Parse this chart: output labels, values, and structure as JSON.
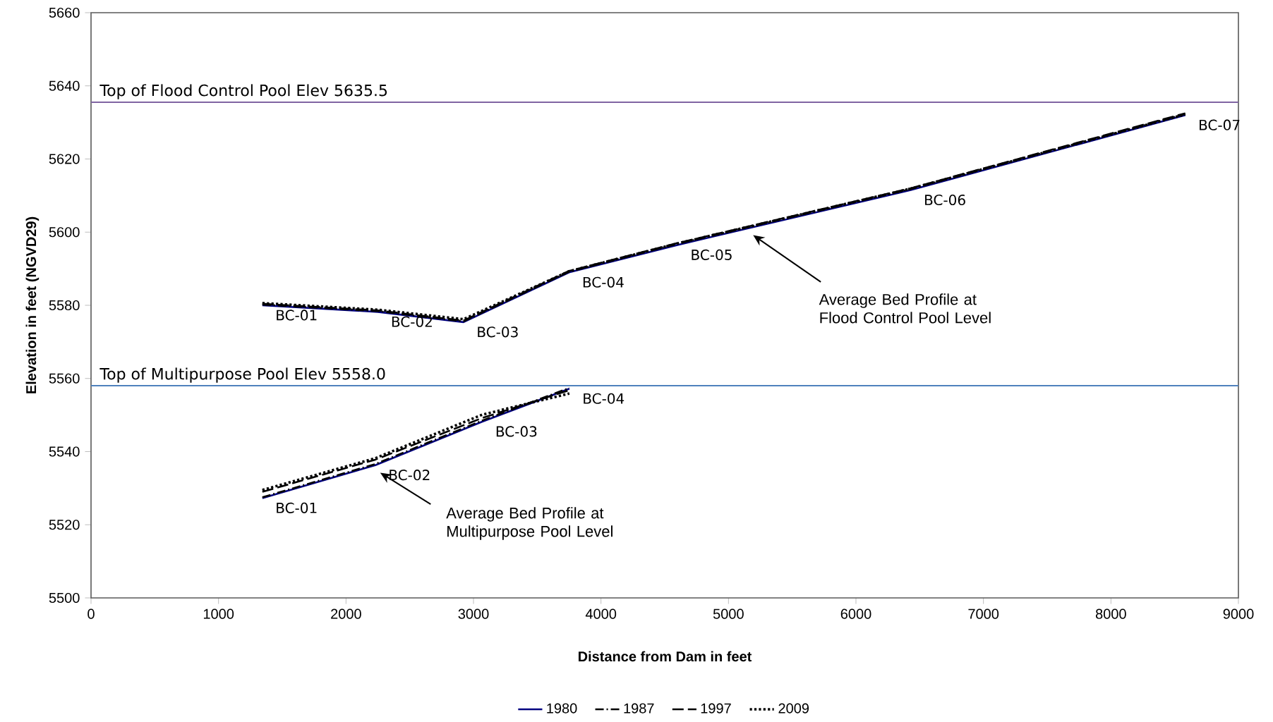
{
  "chart_data": {
    "type": "line",
    "xlabel": "Distance from Dam in feet",
    "ylabel": "Elevation in feet (NGVD29)",
    "xlim": [
      0,
      9000
    ],
    "ylim": [
      5500,
      5660
    ],
    "xticks": [
      0,
      1000,
      2000,
      3000,
      4000,
      5000,
      6000,
      7000,
      8000,
      9000
    ],
    "yticks": [
      5500,
      5520,
      5540,
      5560,
      5580,
      5600,
      5620,
      5640,
      5660
    ],
    "legend": "bottom",
    "grid": false,
    "series": [
      {
        "name": "1980",
        "color": "#000080",
        "line_style": "solid",
        "x": [
          1344,
          2230,
          3069,
          3752
        ],
        "values": [
          5527.3,
          5536.3,
          5548.2,
          5557.2
        ]
      },
      {
        "name": "1987",
        "color": "#000000",
        "line_style": "dashdot",
        "x": [
          1344,
          2230,
          3069,
          3752
        ],
        "values": [
          5527.5,
          5536.6,
          5548.5,
          5557.4
        ]
      },
      {
        "name": "1997",
        "color": "#000000",
        "line_style": "dashed",
        "x": [
          1344,
          2230,
          3069,
          3752
        ],
        "values": [
          5529.0,
          5537.8,
          5549.2,
          5556.8
        ]
      },
      {
        "name": "2009",
        "color": "#000000",
        "line_style": "dotted",
        "x": [
          1344,
          2230,
          3069,
          3752
        ],
        "values": [
          5529.5,
          5538.2,
          5550.1,
          5555.9
        ]
      },
      {
        "color": "#000080",
        "line_style": "solid",
        "x": [
          1344,
          2250,
          2922,
          3750,
          4600,
          6430,
          8583
        ],
        "values": [
          5580.0,
          5578.2,
          5575.4,
          5589.0,
          5596.5,
          5611.5,
          5632.0
        ]
      },
      {
        "color": "#000000",
        "line_style": "dashdot",
        "x": [
          1344,
          2250,
          2922,
          3750,
          4600,
          6430,
          8583
        ],
        "values": [
          5580.2,
          5578.4,
          5575.6,
          5589.2,
          5596.8,
          5611.8,
          5632.3
        ]
      },
      {
        "color": "#000000",
        "line_style": "dashed",
        "x": [
          1344,
          2250,
          2922,
          3750,
          4600,
          6430,
          8583
        ],
        "values": [
          5580.4,
          5578.6,
          5575.8,
          5589.4,
          5597.0,
          5612.0,
          5632.5
        ]
      },
      {
        "color": "#000000",
        "line_style": "dotted",
        "x": [
          1344,
          2250,
          2922,
          3750,
          4600,
          6430,
          8583
        ],
        "values": [
          5580.6,
          5578.8,
          5576.2,
          5589.3,
          5596.9,
          5611.9,
          5632.2
        ]
      }
    ],
    "ref_lines": [
      {
        "axis": "y",
        "value": 5635.5,
        "label": "Top of Flood Control Pool  Elev 5635.5",
        "color": "#8064a2"
      },
      {
        "axis": "y",
        "value": 5558.0,
        "label": "Top of Multipurpose Pool  Elev 5558.0",
        "color": "#4f81bd"
      }
    ],
    "annotations": [
      {
        "text": "BC-01",
        "x": 1344,
        "y": 5580.0
      },
      {
        "text": "BC-02",
        "x": 2250,
        "y": 5578.2
      },
      {
        "text": "BC-03",
        "x": 2922,
        "y": 5575.4
      },
      {
        "text": "BC-04",
        "x": 3750,
        "y": 5589.0
      },
      {
        "text": "BC-05",
        "x": 4600,
        "y": 5596.5
      },
      {
        "text": "BC-06",
        "x": 6430,
        "y": 5611.5
      },
      {
        "text": "BC-07",
        "x": 8583,
        "y": 5632.0
      },
      {
        "text": "BC-01",
        "x": 1344,
        "y": 5527.3
      },
      {
        "text": "BC-02",
        "x": 2230,
        "y": 5536.3
      },
      {
        "text": "BC-03",
        "x": 3069,
        "y": 5548.2
      },
      {
        "text": "BC-04",
        "x": 3752,
        "y": 5557.2
      },
      "Average Bed Profile at Flood Control Pool Level",
      "Average Bed Profile at Multipurpose Pool Level"
    ]
  }
}
